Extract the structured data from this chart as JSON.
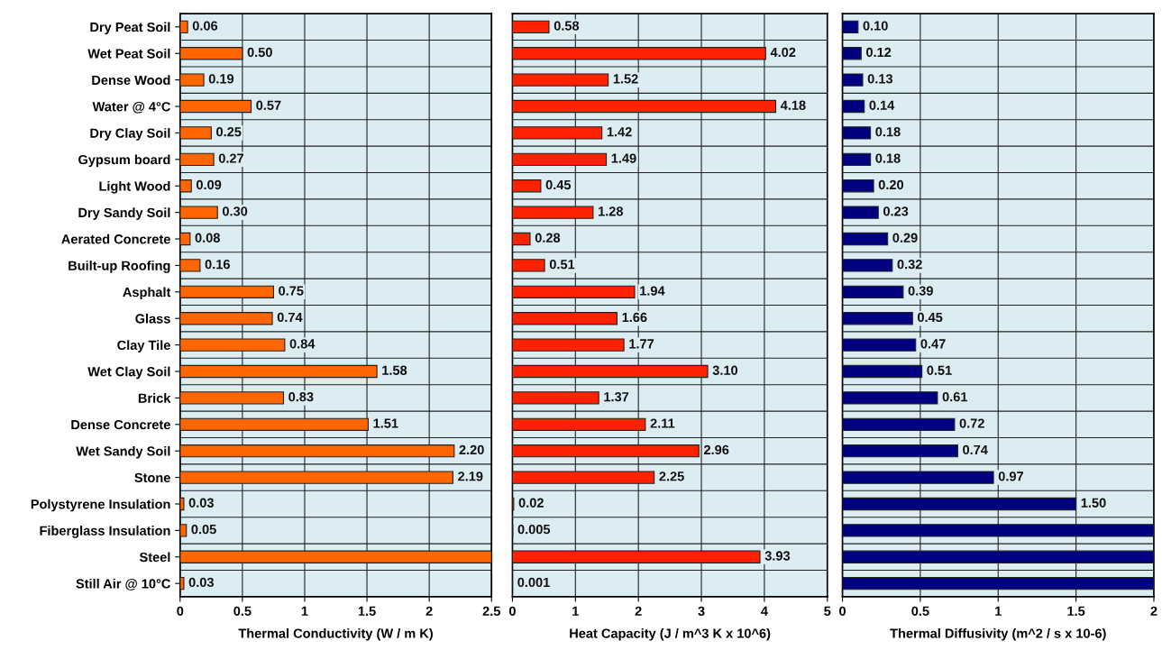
{
  "chart_data": [
    {
      "type": "bar",
      "orientation": "horizontal",
      "xlabel": "Thermal Conductivity (W / m K)",
      "categories": [
        "Dry Peat Soil",
        "Wet Peat Soil",
        "Dense Wood",
        "Water @ 4°C",
        "Dry Clay Soil",
        "Gypsum board",
        "Light Wood",
        "Dry Sandy Soil",
        "Aerated Concrete",
        "Built-up Roofing",
        "Asphalt",
        "Glass",
        "Clay Tile",
        "Wet Clay Soil",
        "Brick",
        "Dense Concrete",
        "Wet Sandy Soil",
        "Stone",
        "Polystyrene Insulation",
        "Fiberglass Insulation",
        "Steel",
        "Still Air @ 10°C"
      ],
      "series": [
        {
          "color": "#ff6600",
          "values": [
            0.06,
            0.5,
            0.19,
            0.57,
            0.25,
            0.27,
            0.09,
            0.3,
            0.08,
            0.16,
            0.75,
            0.74,
            0.84,
            1.58,
            0.83,
            1.51,
            2.2,
            2.19,
            0.03,
            0.05,
            2.5,
            0.03
          ],
          "value_labels": [
            "0.06",
            "0.50",
            "0.19",
            "0.57",
            "0.25",
            "0.27",
            "0.09",
            "0.30",
            "0.08",
            "0.16",
            "0.75",
            "0.74",
            "0.84",
            "1.58",
            "0.83",
            "1.51",
            "2.20",
            "2.19",
            "0.03",
            "0.05",
            null,
            "0.03"
          ]
        }
      ],
      "xlim": [
        0,
        2.5
      ],
      "xticks": [
        0,
        0.5,
        1,
        1.5,
        2,
        2.5
      ],
      "grid": true,
      "legend": false
    },
    {
      "type": "bar",
      "orientation": "horizontal",
      "xlabel": "Heat Capacity (J / m^3 K x 10^6)",
      "tick_labels": "x",
      "categories": [
        null,
        null,
        null,
        null,
        null,
        null,
        null,
        null,
        null,
        null,
        null,
        null,
        null,
        null,
        null,
        null,
        null,
        null,
        null,
        null,
        null,
        null
      ],
      "series": [
        {
          "color": "#ff2200",
          "values": [
            0.58,
            4.02,
            1.52,
            4.18,
            1.42,
            1.49,
            0.45,
            1.28,
            0.28,
            0.51,
            1.94,
            1.66,
            1.77,
            3.1,
            1.37,
            2.11,
            2.96,
            2.25,
            0.02,
            0.005,
            3.93,
            0.001
          ],
          "value_labels": [
            "0.58",
            "4.02",
            "1.52",
            "4.18",
            "1.42",
            "1.49",
            "0.45",
            "1.28",
            "0.28",
            "0.51",
            "1.94",
            "1.66",
            "1.77",
            "3.10",
            "1.37",
            "2.11",
            "2.96",
            "2.25",
            "0.02",
            "0.005",
            "3.93",
            "0.001"
          ]
        }
      ],
      "xlim": [
        0,
        5
      ],
      "xticks": [
        0,
        1,
        2,
        3,
        4,
        5
      ],
      "grid": true,
      "legend": false
    },
    {
      "type": "bar",
      "orientation": "horizontal",
      "xlabel": "Thermal Diffusivity (m^2 / s x 10-6)",
      "tick_labels": "x",
      "categories": [
        null,
        null,
        null,
        null,
        null,
        null,
        null,
        null,
        null,
        null,
        null,
        null,
        null,
        null,
        null,
        null,
        null,
        null,
        null,
        null,
        null,
        null
      ],
      "series": [
        {
          "color": "#000080",
          "values": [
            0.1,
            0.12,
            0.13,
            0.14,
            0.18,
            0.18,
            0.2,
            0.23,
            0.29,
            0.32,
            0.39,
            0.45,
            0.47,
            0.51,
            0.61,
            0.72,
            0.74,
            0.97,
            1.5,
            2,
            2,
            2
          ],
          "value_labels": [
            "0.10",
            "0.12",
            "0.13",
            "0.14",
            "0.18",
            "0.18",
            "0.20",
            "0.23",
            "0.29",
            "0.32",
            "0.39",
            "0.45",
            "0.47",
            "0.51",
            "0.61",
            "0.72",
            "0.74",
            "0.97",
            "1.50",
            null,
            null,
            null
          ]
        }
      ],
      "xlim": [
        0,
        2
      ],
      "xticks": [
        0,
        0.5,
        1,
        1.5,
        2
      ],
      "grid": true,
      "legend": false
    }
  ]
}
